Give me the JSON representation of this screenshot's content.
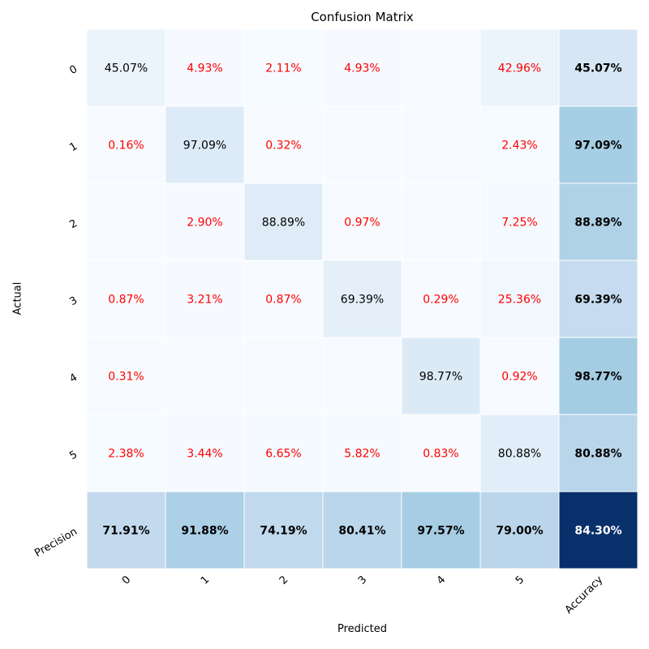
{
  "chart_data": {
    "type": "heatmap",
    "title": "Confusion Matrix",
    "xlabel": "Predicted",
    "ylabel": "Actual",
    "x_tick_labels": [
      "0",
      "1",
      "2",
      "3",
      "4",
      "5",
      "Accuracy"
    ],
    "y_tick_labels": [
      "0",
      "1",
      "2",
      "3",
      "4",
      "5",
      "Precision"
    ],
    "colormap": "Blues",
    "off_diagonal_text_color": "#ff0000",
    "diagonal_text_color": "#000000",
    "cells": [
      [
        "45.07%",
        "4.93%",
        "2.11%",
        "4.93%",
        "",
        "42.96%",
        "45.07%"
      ],
      [
        "0.16%",
        "97.09%",
        "0.32%",
        "",
        "",
        "2.43%",
        "97.09%"
      ],
      [
        "",
        "2.90%",
        "88.89%",
        "0.97%",
        "",
        "7.25%",
        "88.89%"
      ],
      [
        "0.87%",
        "3.21%",
        "0.87%",
        "69.39%",
        "0.29%",
        "25.36%",
        "69.39%"
      ],
      [
        "0.31%",
        "",
        "",
        "",
        "98.77%",
        "0.92%",
        "98.77%"
      ],
      [
        "2.38%",
        "3.44%",
        "6.65%",
        "5.82%",
        "0.83%",
        "80.88%",
        "80.88%"
      ],
      [
        "71.91%",
        "91.88%",
        "74.19%",
        "80.41%",
        "97.57%",
        "79.00%",
        "84.30%"
      ]
    ]
  }
}
